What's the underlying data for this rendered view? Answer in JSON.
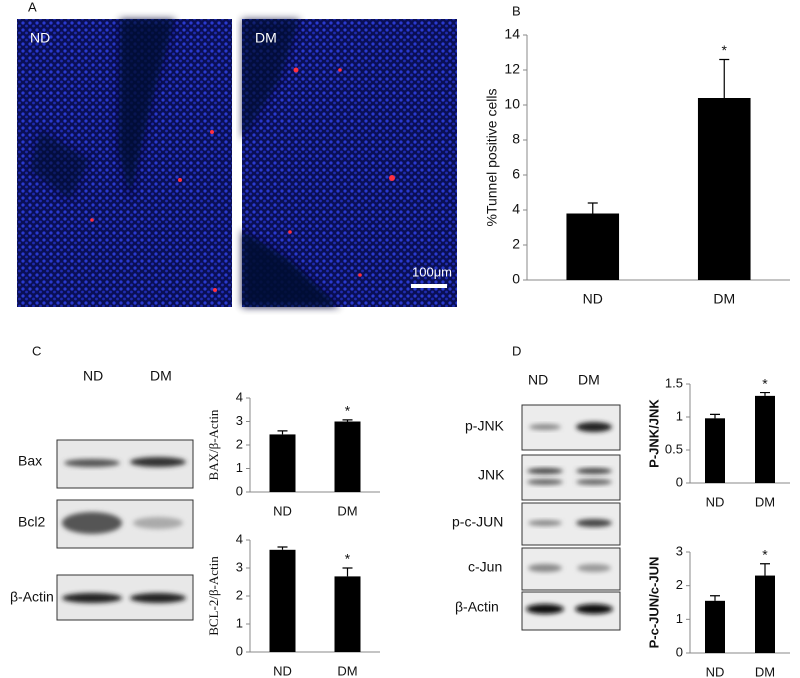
{
  "panel_labels": [
    "A",
    "B",
    "C",
    "D"
  ],
  "micrographs": {
    "labels": [
      "ND",
      "DM"
    ],
    "scale_bar": "100μm"
  },
  "blot_c": {
    "lanes": [
      "ND",
      "DM"
    ],
    "rows": [
      "Bax",
      "Bcl2",
      "β-Actin"
    ]
  },
  "blot_d": {
    "lanes": [
      "ND",
      "DM"
    ],
    "rows": [
      "p-JNK",
      "JNK",
      "p-c-JUN",
      "c-Jun",
      "β-Actin"
    ]
  },
  "chart_data": [
    {
      "type": "bar",
      "ylabel": "%Tunnel positive cells",
      "categories": [
        "ND",
        "DM"
      ],
      "values": [
        3.8,
        10.4
      ],
      "errors": [
        0.6,
        2.2
      ],
      "markers": [
        null,
        "*"
      ],
      "color": "#000000",
      "ylim": [
        0,
        14
      ],
      "yticks": [
        0,
        2,
        4,
        6,
        8,
        10,
        12,
        14
      ]
    },
    {
      "type": "bar",
      "ylabel": "BAX/β-Actin",
      "categories": [
        "ND",
        "DM"
      ],
      "values": [
        2.45,
        3.0
      ],
      "errors": [
        0.15,
        0.07
      ],
      "markers": [
        null,
        "*"
      ],
      "color": "#000000",
      "ylim": [
        0,
        4
      ],
      "yticks": [
        0,
        1,
        2,
        3,
        4
      ]
    },
    {
      "type": "bar",
      "ylabel": "BCL-2/β-Actin",
      "categories": [
        "ND",
        "DM"
      ],
      "values": [
        3.65,
        2.7
      ],
      "errors": [
        0.1,
        0.3
      ],
      "markers": [
        null,
        "*"
      ],
      "color": "#000000",
      "ylim": [
        0,
        4
      ],
      "yticks": [
        0,
        1,
        2,
        3,
        4
      ]
    },
    {
      "type": "bar",
      "ylabel": "P-JNK/JNK",
      "categories": [
        "ND",
        "DM"
      ],
      "values": [
        0.98,
        1.32
      ],
      "errors": [
        0.06,
        0.05
      ],
      "markers": [
        null,
        "*"
      ],
      "color": "#000000",
      "ylim": [
        0,
        1.5
      ],
      "yticks": [
        0,
        0.5,
        1,
        1.5
      ]
    },
    {
      "type": "bar",
      "ylabel": "P-c-JUN/c-JUN",
      "categories": [
        "ND",
        "DM"
      ],
      "values": [
        1.55,
        2.3
      ],
      "errors": [
        0.15,
        0.35
      ],
      "markers": [
        null,
        "*"
      ],
      "color": "#000000",
      "ylim": [
        0,
        3
      ],
      "yticks": [
        0,
        1,
        2,
        3
      ]
    }
  ]
}
